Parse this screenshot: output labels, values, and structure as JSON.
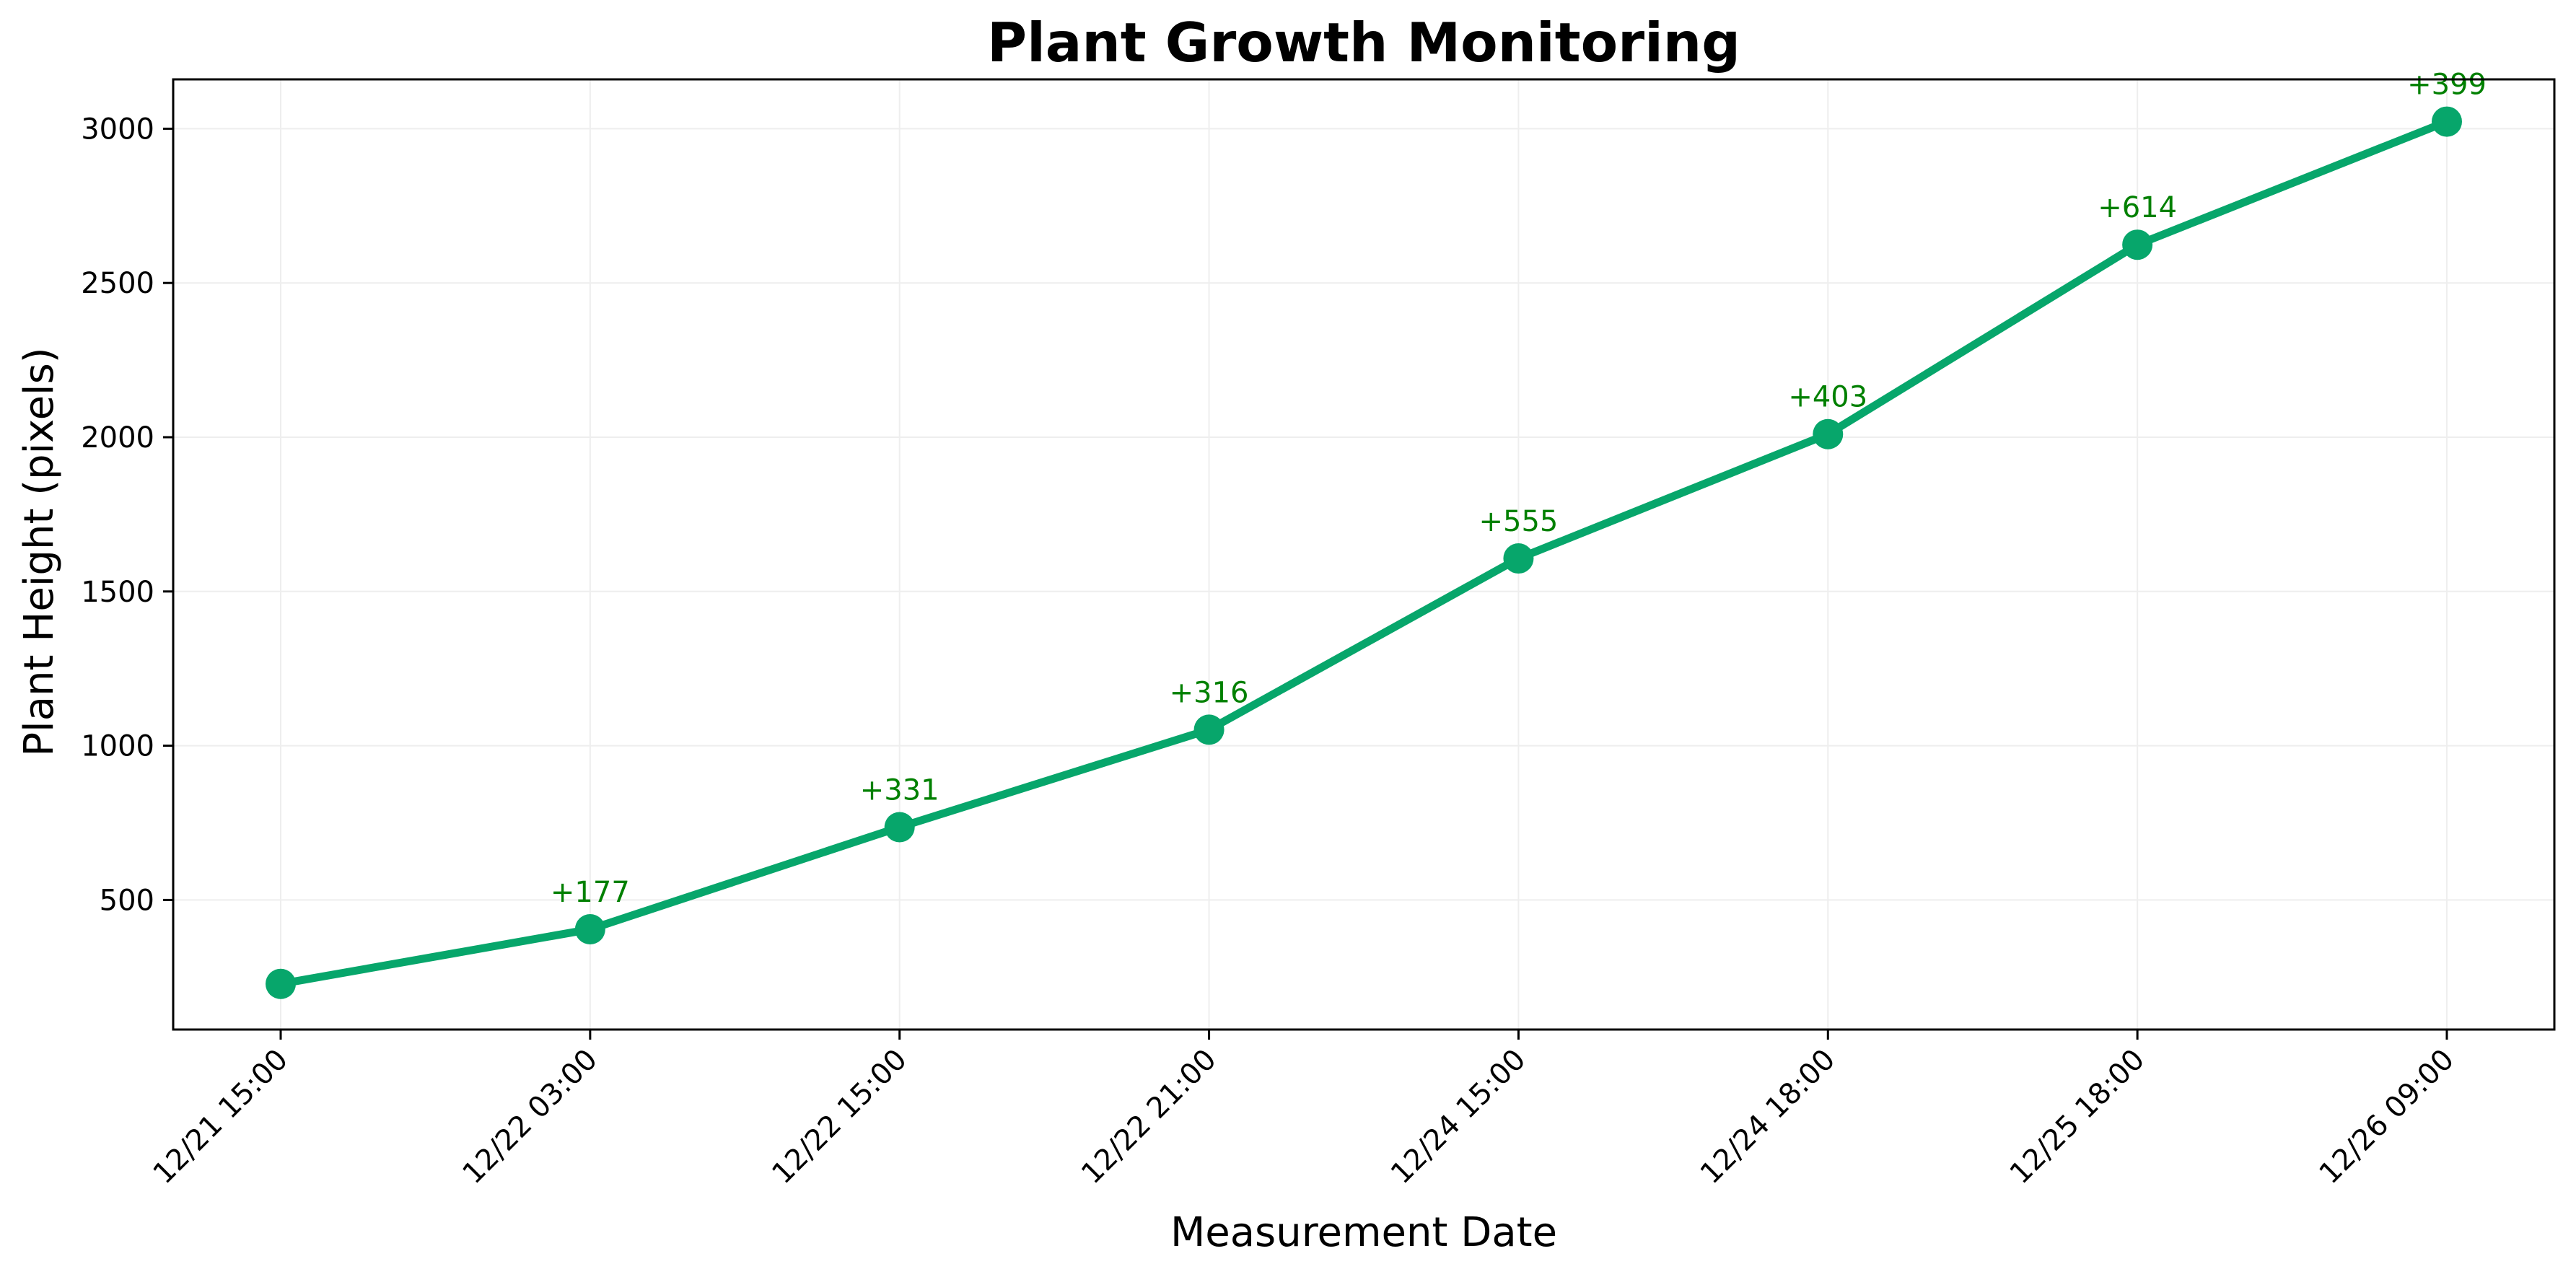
{
  "chart_data": {
    "type": "line",
    "title": "Plant Growth Monitoring",
    "xlabel": "Measurement Date",
    "ylabel": "Plant Height (pixels)",
    "categories": [
      "12/21 15:00",
      "12/22 03:00",
      "12/22 15:00",
      "12/22 21:00",
      "12/24 15:00",
      "12/24 18:00",
      "12/25 18:00",
      "12/26 09:00"
    ],
    "series": [
      {
        "values": [
          228,
          405,
          736,
          1052,
          1607,
          2010,
          2624,
          3023
        ],
        "data_labels": [
          "",
          "+177",
          "+331",
          "+316",
          "+555",
          "+403",
          "+614",
          "+399"
        ]
      }
    ],
    "yticks": [
      500,
      1000,
      1500,
      2000,
      2500,
      3000
    ],
    "ylim": [
      80,
      3160
    ],
    "grid": true,
    "legend": "none",
    "colors": {
      "line": "#07A66B",
      "label": "#008000"
    }
  }
}
